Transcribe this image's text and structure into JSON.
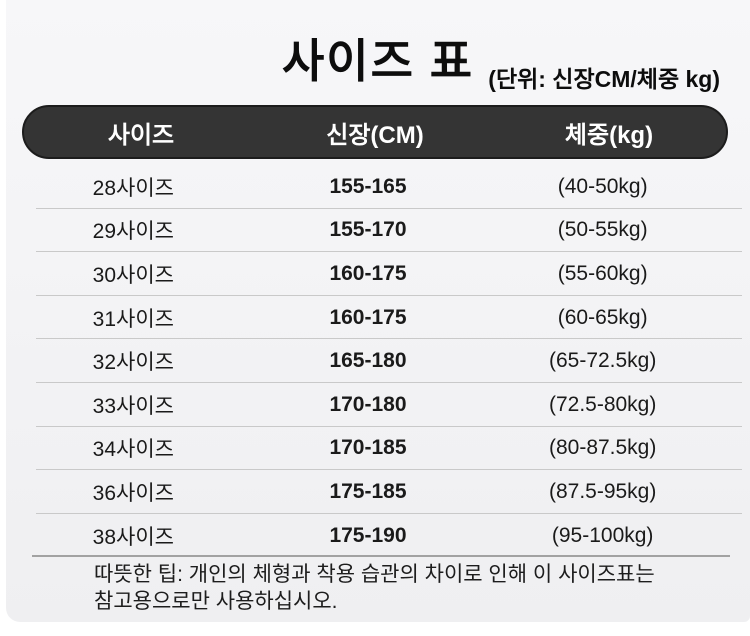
{
  "chart_data": {
    "type": "table",
    "title": "사이즈 표",
    "unit_note": "(단위: 신장CM/체중 kg)",
    "columns": [
      "사이즈",
      "신장(CM)",
      "체중(kg)"
    ],
    "rows": [
      [
        "28사이즈",
        "155-165",
        "(40-50kg)"
      ],
      [
        "29사이즈",
        "155-170",
        "(50-55kg)"
      ],
      [
        "30사이즈",
        "160-175",
        "(55-60kg)"
      ],
      [
        "31사이즈",
        "160-175",
        "(60-65kg)"
      ],
      [
        "32사이즈",
        "165-180",
        "(65-72.5kg)"
      ],
      [
        "33사이즈",
        "170-180",
        "(72.5-80kg)"
      ],
      [
        "34사이즈",
        "170-185",
        "(80-87.5kg)"
      ],
      [
        "36사이즈",
        "175-185",
        "(87.5-95kg)"
      ],
      [
        "38사이즈",
        "175-190",
        "(95-100kg)"
      ]
    ],
    "footer_note": "따뜻한 팁: 개인의 체형과 착용 습관의 차이로 인해 이 사이즈표는 참고용으로만 사용하십시오."
  },
  "colors": {
    "header_bg": "#343434",
    "header_text": "#ffffff",
    "panel_bg": "#f3f3f5",
    "divider": "#c9c9c9",
    "text": "#1a1a1a"
  }
}
